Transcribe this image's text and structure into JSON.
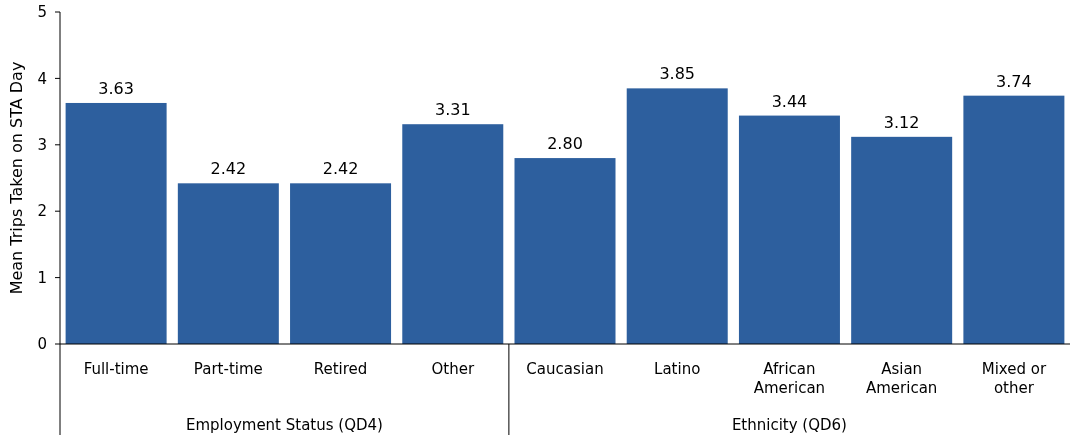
{
  "chart_data": {
    "type": "bar",
    "categories": [
      "Full-time",
      "Part-time",
      "Retired",
      "Other",
      "Caucasian",
      "Latino",
      "African American",
      "Asian American",
      "Mixed or other"
    ],
    "values": [
      3.63,
      2.42,
      2.42,
      3.31,
      2.8,
      3.85,
      3.44,
      3.12,
      3.74
    ],
    "value_labels": [
      "3.63",
      "2.42",
      "2.42",
      "3.31",
      "2.80",
      "3.85",
      "3.44",
      "3.12",
      "3.74"
    ],
    "color": "#2d5f9e",
    "ylabel": "Mean Trips Taken on STA Day",
    "ylim": [
      0,
      5
    ],
    "yticks": [
      0,
      1,
      2,
      3,
      4,
      5
    ],
    "grid": false,
    "annotations": [
      "Employment Status (QD4)",
      "Ethnicity (QD6)"
    ]
  }
}
